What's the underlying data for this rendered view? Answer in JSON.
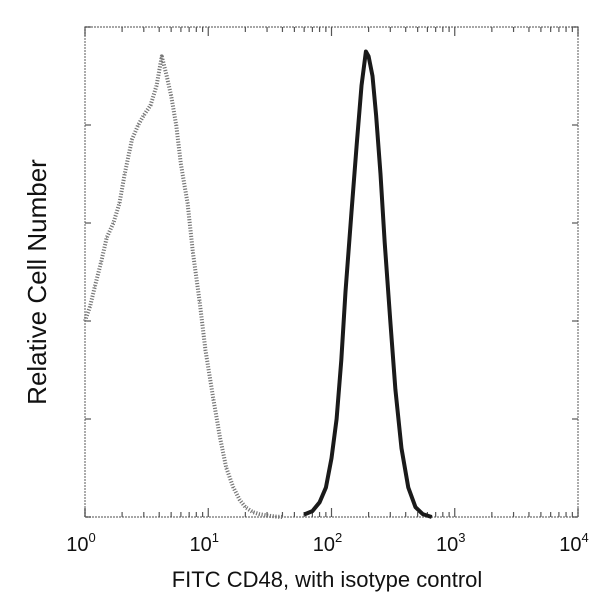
{
  "chart_data": {
    "type": "line",
    "title": "",
    "xlabel": "FITC CD48, with isotype control",
    "ylabel": "Relative Cell Number",
    "x_scale": "log",
    "xlim": [
      1,
      10000
    ],
    "ylim": [
      0,
      100
    ],
    "grid": false,
    "x_tick_labels": [
      {
        "base": "10",
        "exp": "0",
        "value": 1
      },
      {
        "base": "10",
        "exp": "1",
        "value": 10
      },
      {
        "base": "10",
        "exp": "2",
        "value": 100
      },
      {
        "base": "10",
        "exp": "3",
        "value": 1000
      },
      {
        "base": "10",
        "exp": "4",
        "value": 10000
      }
    ],
    "series": [
      {
        "style": "dotted light gray (isotype control)",
        "color": "#777777",
        "x": [
          1.0,
          1.1,
          1.2,
          1.35,
          1.5,
          1.7,
          1.9,
          2.1,
          2.4,
          2.7,
          3.0,
          3.4,
          3.8,
          4.2,
          4.6,
          5.0,
          5.5,
          6.0,
          6.8,
          7.5,
          8.5,
          9.5,
          11,
          12.5,
          14,
          16,
          18,
          20,
          23,
          26,
          30,
          35,
          40
        ],
        "y": [
          40,
          43,
          47,
          52,
          57,
          60,
          64,
          70,
          77,
          80,
          82,
          84,
          88,
          94,
          90,
          86,
          80,
          72,
          64,
          54,
          44,
          34,
          24,
          16,
          10,
          6,
          3.5,
          2,
          1,
          0.6,
          0.3,
          0.1,
          0
        ]
      },
      {
        "style": "solid black (CD48)",
        "color": "#1a1a1a",
        "x": [
          60,
          70,
          80,
          90,
          100,
          110,
          120,
          130,
          145,
          160,
          175,
          190,
          200,
          215,
          230,
          250,
          270,
          300,
          330,
          370,
          420,
          480,
          550,
          650
        ],
        "y": [
          0.5,
          1.2,
          3,
          6,
          12,
          20,
          32,
          46,
          62,
          76,
          88,
          95,
          94,
          90,
          82,
          70,
          56,
          40,
          26,
          14,
          6,
          2,
          0.6,
          0
        ]
      }
    ]
  }
}
